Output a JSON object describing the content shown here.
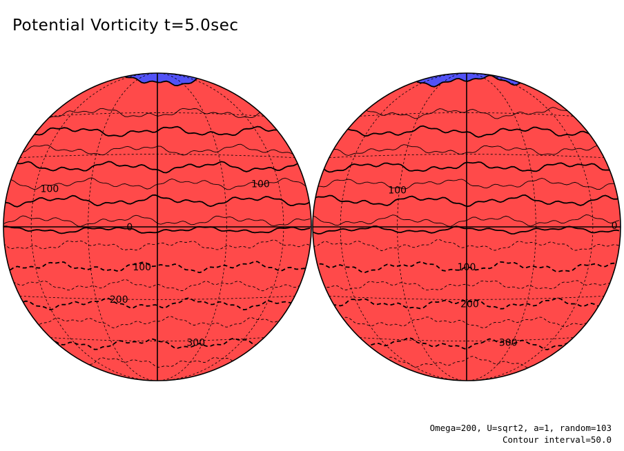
{
  "title": "Potential Vorticity t=5.0sec",
  "footer": {
    "params": "Omega=200, U=sqrt2, a=1, random=103",
    "interval": "Contour interval=50.0"
  },
  "colors": {
    "positive_max": "#ff4444",
    "zero": "#ffffff",
    "negative_max": "#4444ff",
    "contour": "#000000"
  },
  "hemispheres": [
    {
      "name": "left",
      "labels": [
        {
          "text": "100",
          "u": -0.7,
          "v": 0.25
        },
        {
          "text": "100",
          "u": 0.67,
          "v": 0.28
        },
        {
          "text": "0",
          "u": -0.18,
          "v": 0.0
        },
        {
          "text": "100",
          "u": -0.1,
          "v": -0.26
        },
        {
          "text": "200",
          "u": -0.25,
          "v": -0.47
        },
        {
          "text": "300",
          "u": 0.25,
          "v": -0.75
        }
      ]
    },
    {
      "name": "right",
      "labels": [
        {
          "text": "100",
          "u": -0.45,
          "v": 0.24
        },
        {
          "text": "0",
          "u": 0.96,
          "v": 0.01
        },
        {
          "text": "100",
          "u": 0.0,
          "v": -0.26
        },
        {
          "text": "200",
          "u": 0.02,
          "v": -0.5
        },
        {
          "text": "300",
          "u": 0.27,
          "v": -0.75
        }
      ]
    }
  ]
}
